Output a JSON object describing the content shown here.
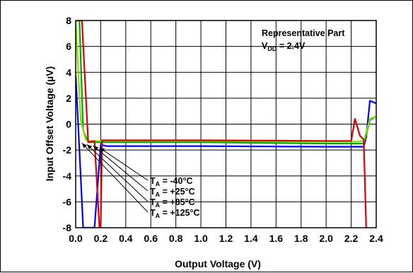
{
  "chart_data": {
    "type": "line",
    "xlabel": "Output Voltage (V)",
    "ylabel": "Input Offset Voltage (µV)",
    "xlim": [
      0,
      2.4
    ],
    "ylim": [
      -8,
      8
    ],
    "x_ticks": [
      "0.0",
      "0.2",
      "0.4",
      "0.6",
      "0.8",
      "1.0",
      "1.2",
      "1.4",
      "1.6",
      "1.8",
      "2.0",
      "2.2",
      "2.4"
    ],
    "y_ticks": [
      "8",
      "6",
      "4",
      "2",
      "0",
      "-2",
      "-4",
      "-6",
      "-8"
    ],
    "grid": true,
    "annotation": {
      "line1": "Representative Part",
      "line2_prefix": "V",
      "line2_sub": "DD",
      "line2_suffix": " = 2.4V"
    },
    "series": [
      {
        "name": "TA = -40°C",
        "label_main": "T",
        "label_sub": "A",
        "label_rest": " = -40°C",
        "color": "#0000ff",
        "x": [
          0.0,
          0.03,
          0.06,
          0.09,
          0.15,
          0.2,
          0.25,
          0.3,
          1.0,
          2.0,
          2.3,
          2.32,
          2.35,
          2.4
        ],
        "y": [
          3.8,
          -2.0,
          -8.0,
          -8.0,
          -8.0,
          -1.6,
          -1.7,
          -1.7,
          -1.7,
          -1.75,
          -1.75,
          -1.0,
          1.8,
          1.6
        ]
      },
      {
        "name": "TA = +25°C",
        "label_main": "T",
        "label_sub": "A",
        "label_rest": " = +25°C",
        "color": "#00aa00",
        "x": [
          0.0,
          0.03,
          0.06,
          0.1,
          0.2,
          0.3,
          1.0,
          2.0,
          2.25,
          2.3,
          2.35,
          2.4
        ],
        "y": [
          8.0,
          8.0,
          -0.5,
          -1.4,
          -1.4,
          -1.4,
          -1.4,
          -1.5,
          -1.5,
          -1.5,
          0.3,
          0.6
        ]
      },
      {
        "name": "TA = +85°C",
        "label_main": "T",
        "label_sub": "A",
        "label_rest": " = +85°C",
        "color": "#88dd00",
        "x": [
          0.0,
          0.04,
          0.08,
          0.1,
          0.2,
          0.3,
          1.0,
          2.0,
          2.25,
          2.3,
          2.35,
          2.4
        ],
        "y": [
          8.0,
          0.3,
          -1.2,
          -1.3,
          -1.3,
          -1.3,
          -1.3,
          -1.35,
          -1.35,
          -1.3,
          0.4,
          0.6
        ]
      },
      {
        "name": "TA = +125°C",
        "label_main": "T",
        "label_sub": "A",
        "label_rest": " = +125°C",
        "color": "#dd0000",
        "x": [
          0.0,
          0.05,
          0.1,
          0.15,
          0.19,
          0.2,
          0.21,
          0.3,
          1.0,
          2.0,
          2.2,
          2.23,
          2.27,
          2.3,
          2.32
        ],
        "y": [
          8.0,
          8.0,
          -1.4,
          -1.3,
          -8.0,
          -8.0,
          -1.25,
          -1.25,
          -1.25,
          -1.3,
          -1.3,
          0.4,
          -0.9,
          -1.2,
          -8.0
        ]
      }
    ]
  }
}
